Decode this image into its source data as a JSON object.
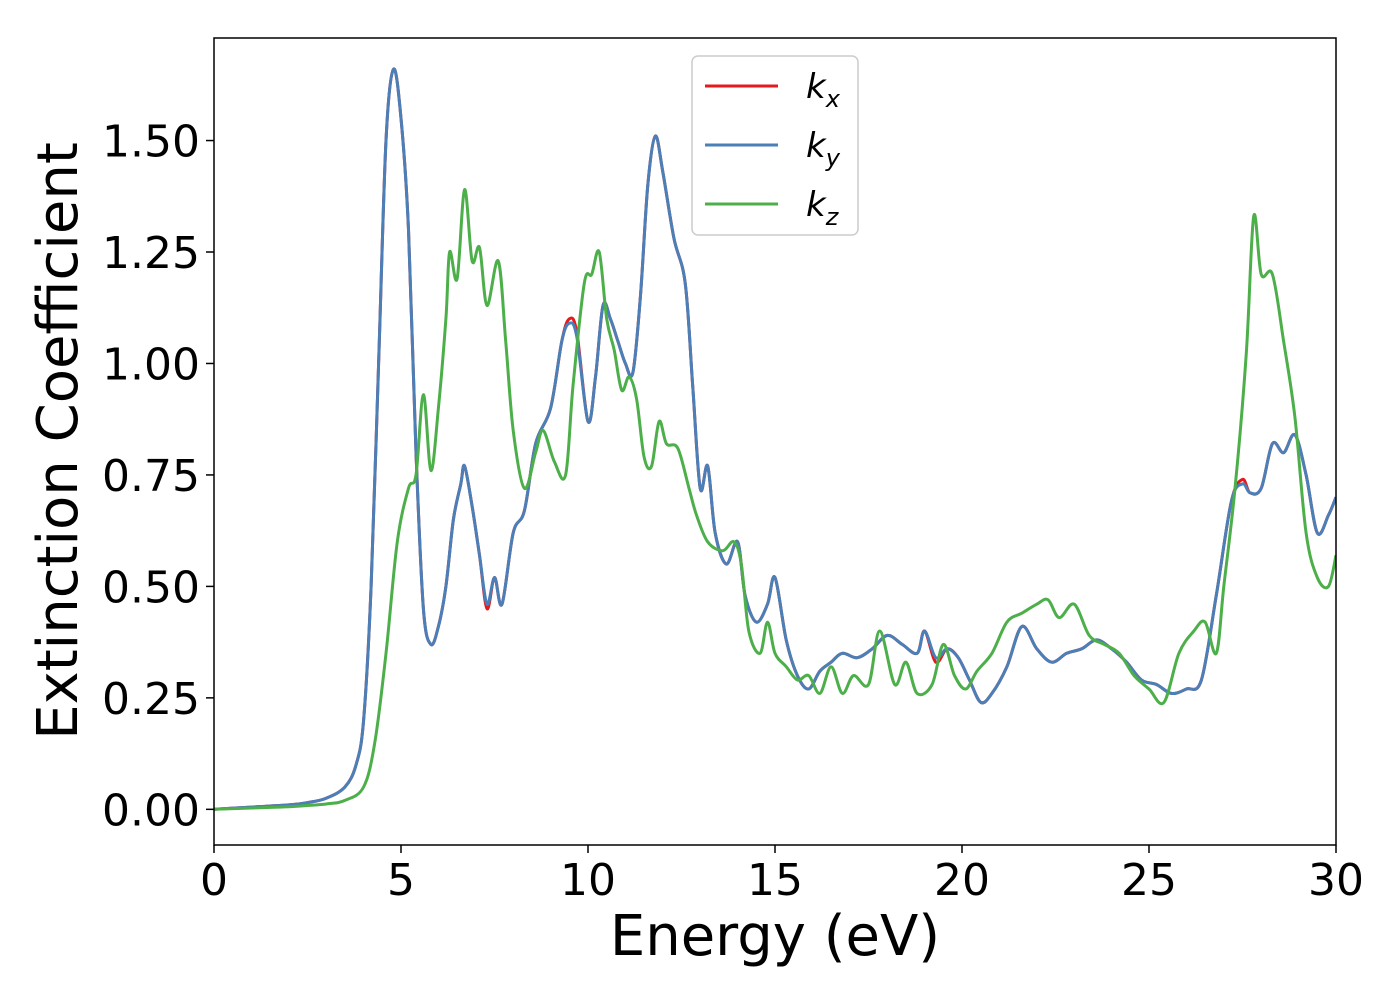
{
  "chart_data": {
    "type": "line",
    "title": "",
    "xlabel": "Energy (eV)",
    "ylabel": "Extinction Coefficient",
    "xlim": [
      0,
      30
    ],
    "ylim": [
      -0.08,
      1.73
    ],
    "xticks": [
      0,
      5,
      10,
      15,
      20,
      25,
      30
    ],
    "xtick_labels": [
      "0",
      "5",
      "10",
      "15",
      "20",
      "25",
      "30"
    ],
    "yticks": [
      0,
      0.25,
      0.5,
      0.75,
      1.0,
      1.25,
      1.5
    ],
    "ytick_labels": [
      "0.00",
      "0.25",
      "0.50",
      "0.75",
      "1.00",
      "1.25",
      "1.50"
    ],
    "grid": false,
    "legend_position": "top-center",
    "series": [
      {
        "name": "k_x",
        "legend_main": "k",
        "legend_sub": "x",
        "color": "#e41a1c",
        "points": [
          [
            0,
            0
          ],
          [
            1,
            0.005
          ],
          [
            2,
            0.01
          ],
          [
            2.5,
            0.015
          ],
          [
            3,
            0.025
          ],
          [
            3.5,
            0.05
          ],
          [
            3.8,
            0.1
          ],
          [
            4.0,
            0.2
          ],
          [
            4.2,
            0.5
          ],
          [
            4.4,
            1.0
          ],
          [
            4.6,
            1.5
          ],
          [
            4.8,
            1.66
          ],
          [
            5.0,
            1.55
          ],
          [
            5.2,
            1.3
          ],
          [
            5.4,
            0.8
          ],
          [
            5.6,
            0.45
          ],
          [
            5.8,
            0.37
          ],
          [
            6.0,
            0.41
          ],
          [
            6.2,
            0.5
          ],
          [
            6.4,
            0.65
          ],
          [
            6.6,
            0.73
          ],
          [
            6.7,
            0.77
          ],
          [
            6.9,
            0.68
          ],
          [
            7.1,
            0.57
          ],
          [
            7.3,
            0.45
          ],
          [
            7.5,
            0.52
          ],
          [
            7.7,
            0.46
          ],
          [
            8.0,
            0.62
          ],
          [
            8.3,
            0.67
          ],
          [
            8.6,
            0.82
          ],
          [
            9.0,
            0.9
          ],
          [
            9.3,
            1.05
          ],
          [
            9.5,
            1.1
          ],
          [
            9.7,
            1.07
          ],
          [
            10.0,
            0.87
          ],
          [
            10.2,
            0.97
          ],
          [
            10.4,
            1.13
          ],
          [
            10.6,
            1.1
          ],
          [
            10.8,
            1.05
          ],
          [
            11.0,
            1.0
          ],
          [
            11.2,
            0.98
          ],
          [
            11.4,
            1.15
          ],
          [
            11.6,
            1.4
          ],
          [
            11.8,
            1.51
          ],
          [
            12.0,
            1.43
          ],
          [
            12.3,
            1.28
          ],
          [
            12.6,
            1.18
          ],
          [
            12.8,
            0.95
          ],
          [
            13.0,
            0.72
          ],
          [
            13.2,
            0.77
          ],
          [
            13.4,
            0.62
          ],
          [
            13.7,
            0.55
          ],
          [
            14.0,
            0.6
          ],
          [
            14.2,
            0.48
          ],
          [
            14.5,
            0.42
          ],
          [
            14.8,
            0.46
          ],
          [
            15.0,
            0.52
          ],
          [
            15.3,
            0.38
          ],
          [
            15.6,
            0.3
          ],
          [
            15.9,
            0.27
          ],
          [
            16.2,
            0.31
          ],
          [
            16.5,
            0.33
          ],
          [
            16.8,
            0.35
          ],
          [
            17.2,
            0.34
          ],
          [
            17.6,
            0.36
          ],
          [
            18.0,
            0.39
          ],
          [
            18.4,
            0.37
          ],
          [
            18.8,
            0.35
          ],
          [
            19.0,
            0.4
          ],
          [
            19.3,
            0.33
          ],
          [
            19.6,
            0.36
          ],
          [
            19.9,
            0.34
          ],
          [
            20.2,
            0.29
          ],
          [
            20.5,
            0.24
          ],
          [
            20.8,
            0.26
          ],
          [
            21.2,
            0.32
          ],
          [
            21.6,
            0.41
          ],
          [
            22.0,
            0.36
          ],
          [
            22.4,
            0.33
          ],
          [
            22.8,
            0.35
          ],
          [
            23.2,
            0.36
          ],
          [
            23.6,
            0.38
          ],
          [
            24.0,
            0.36
          ],
          [
            24.4,
            0.33
          ],
          [
            24.8,
            0.29
          ],
          [
            25.2,
            0.28
          ],
          [
            25.6,
            0.26
          ],
          [
            26.0,
            0.27
          ],
          [
            26.4,
            0.29
          ],
          [
            26.8,
            0.48
          ],
          [
            27.2,
            0.69
          ],
          [
            27.5,
            0.74
          ],
          [
            27.7,
            0.71
          ],
          [
            28.0,
            0.72
          ],
          [
            28.3,
            0.82
          ],
          [
            28.6,
            0.8
          ],
          [
            28.9,
            0.84
          ],
          [
            29.2,
            0.75
          ],
          [
            29.5,
            0.62
          ],
          [
            29.8,
            0.66
          ],
          [
            30.0,
            0.7
          ]
        ]
      },
      {
        "name": "k_y",
        "legend_main": "k",
        "legend_sub": "y",
        "color": "#4a7fb8",
        "points": [
          [
            0,
            0
          ],
          [
            1,
            0.005
          ],
          [
            2,
            0.01
          ],
          [
            2.5,
            0.015
          ],
          [
            3,
            0.025
          ],
          [
            3.5,
            0.05
          ],
          [
            3.8,
            0.1
          ],
          [
            4.0,
            0.2
          ],
          [
            4.2,
            0.5
          ],
          [
            4.4,
            1.0
          ],
          [
            4.6,
            1.5
          ],
          [
            4.8,
            1.66
          ],
          [
            5.0,
            1.55
          ],
          [
            5.2,
            1.3
          ],
          [
            5.4,
            0.8
          ],
          [
            5.6,
            0.45
          ],
          [
            5.8,
            0.37
          ],
          [
            6.0,
            0.41
          ],
          [
            6.2,
            0.5
          ],
          [
            6.4,
            0.65
          ],
          [
            6.6,
            0.73
          ],
          [
            6.7,
            0.77
          ],
          [
            6.9,
            0.68
          ],
          [
            7.1,
            0.57
          ],
          [
            7.3,
            0.46
          ],
          [
            7.5,
            0.52
          ],
          [
            7.7,
            0.46
          ],
          [
            8.0,
            0.62
          ],
          [
            8.3,
            0.67
          ],
          [
            8.6,
            0.82
          ],
          [
            9.0,
            0.9
          ],
          [
            9.3,
            1.05
          ],
          [
            9.5,
            1.09
          ],
          [
            9.7,
            1.06
          ],
          [
            10.0,
            0.87
          ],
          [
            10.2,
            0.97
          ],
          [
            10.4,
            1.13
          ],
          [
            10.6,
            1.1
          ],
          [
            10.8,
            1.05
          ],
          [
            11.0,
            1.0
          ],
          [
            11.2,
            0.98
          ],
          [
            11.4,
            1.15
          ],
          [
            11.6,
            1.4
          ],
          [
            11.8,
            1.51
          ],
          [
            12.0,
            1.43
          ],
          [
            12.3,
            1.28
          ],
          [
            12.6,
            1.18
          ],
          [
            12.8,
            0.95
          ],
          [
            13.0,
            0.72
          ],
          [
            13.2,
            0.77
          ],
          [
            13.4,
            0.62
          ],
          [
            13.7,
            0.55
          ],
          [
            14.0,
            0.6
          ],
          [
            14.2,
            0.48
          ],
          [
            14.5,
            0.42
          ],
          [
            14.8,
            0.46
          ],
          [
            15.0,
            0.52
          ],
          [
            15.3,
            0.38
          ],
          [
            15.6,
            0.3
          ],
          [
            15.9,
            0.27
          ],
          [
            16.2,
            0.31
          ],
          [
            16.5,
            0.33
          ],
          [
            16.8,
            0.35
          ],
          [
            17.2,
            0.34
          ],
          [
            17.6,
            0.36
          ],
          [
            18.0,
            0.39
          ],
          [
            18.4,
            0.37
          ],
          [
            18.8,
            0.35
          ],
          [
            19.0,
            0.4
          ],
          [
            19.3,
            0.34
          ],
          [
            19.6,
            0.36
          ],
          [
            19.9,
            0.34
          ],
          [
            20.2,
            0.29
          ],
          [
            20.5,
            0.24
          ],
          [
            20.8,
            0.26
          ],
          [
            21.2,
            0.32
          ],
          [
            21.6,
            0.41
          ],
          [
            22.0,
            0.36
          ],
          [
            22.4,
            0.33
          ],
          [
            22.8,
            0.35
          ],
          [
            23.2,
            0.36
          ],
          [
            23.6,
            0.38
          ],
          [
            24.0,
            0.36
          ],
          [
            24.4,
            0.33
          ],
          [
            24.8,
            0.29
          ],
          [
            25.2,
            0.28
          ],
          [
            25.6,
            0.26
          ],
          [
            26.0,
            0.27
          ],
          [
            26.4,
            0.29
          ],
          [
            26.8,
            0.48
          ],
          [
            27.2,
            0.69
          ],
          [
            27.5,
            0.73
          ],
          [
            27.7,
            0.71
          ],
          [
            28.0,
            0.72
          ],
          [
            28.3,
            0.82
          ],
          [
            28.6,
            0.8
          ],
          [
            28.9,
            0.84
          ],
          [
            29.2,
            0.75
          ],
          [
            29.5,
            0.62
          ],
          [
            29.8,
            0.66
          ],
          [
            30.0,
            0.7
          ]
        ]
      },
      {
        "name": "k_z",
        "legend_main": "k",
        "legend_sub": "z",
        "color": "#4daf4a",
        "points": [
          [
            0,
            0
          ],
          [
            1,
            0.003
          ],
          [
            2,
            0.006
          ],
          [
            3,
            0.012
          ],
          [
            3.5,
            0.02
          ],
          [
            4.0,
            0.05
          ],
          [
            4.3,
            0.15
          ],
          [
            4.6,
            0.35
          ],
          [
            4.9,
            0.6
          ],
          [
            5.2,
            0.72
          ],
          [
            5.4,
            0.75
          ],
          [
            5.6,
            0.93
          ],
          [
            5.8,
            0.76
          ],
          [
            6.0,
            0.9
          ],
          [
            6.2,
            1.1
          ],
          [
            6.3,
            1.25
          ],
          [
            6.5,
            1.19
          ],
          [
            6.7,
            1.39
          ],
          [
            6.9,
            1.23
          ],
          [
            7.1,
            1.26
          ],
          [
            7.3,
            1.13
          ],
          [
            7.6,
            1.23
          ],
          [
            7.8,
            1.05
          ],
          [
            8.0,
            0.85
          ],
          [
            8.3,
            0.72
          ],
          [
            8.6,
            0.8
          ],
          [
            8.8,
            0.85
          ],
          [
            9.1,
            0.78
          ],
          [
            9.4,
            0.75
          ],
          [
            9.6,
            0.95
          ],
          [
            9.9,
            1.18
          ],
          [
            10.1,
            1.2
          ],
          [
            10.3,
            1.25
          ],
          [
            10.5,
            1.1
          ],
          [
            10.7,
            1.03
          ],
          [
            10.9,
            0.94
          ],
          [
            11.1,
            0.97
          ],
          [
            11.3,
            0.92
          ],
          [
            11.5,
            0.79
          ],
          [
            11.7,
            0.77
          ],
          [
            11.9,
            0.87
          ],
          [
            12.1,
            0.82
          ],
          [
            12.4,
            0.81
          ],
          [
            12.7,
            0.72
          ],
          [
            12.9,
            0.66
          ],
          [
            13.2,
            0.6
          ],
          [
            13.6,
            0.58
          ],
          [
            13.9,
            0.6
          ],
          [
            14.1,
            0.55
          ],
          [
            14.3,
            0.4
          ],
          [
            14.6,
            0.35
          ],
          [
            14.8,
            0.42
          ],
          [
            15.0,
            0.35
          ],
          [
            15.3,
            0.32
          ],
          [
            15.6,
            0.29
          ],
          [
            15.9,
            0.3
          ],
          [
            16.2,
            0.26
          ],
          [
            16.5,
            0.32
          ],
          [
            16.8,
            0.26
          ],
          [
            17.1,
            0.3
          ],
          [
            17.5,
            0.28
          ],
          [
            17.8,
            0.4
          ],
          [
            18.2,
            0.28
          ],
          [
            18.5,
            0.33
          ],
          [
            18.8,
            0.26
          ],
          [
            19.2,
            0.28
          ],
          [
            19.5,
            0.37
          ],
          [
            19.8,
            0.3
          ],
          [
            20.1,
            0.27
          ],
          [
            20.4,
            0.31
          ],
          [
            20.8,
            0.35
          ],
          [
            21.2,
            0.42
          ],
          [
            21.6,
            0.44
          ],
          [
            22.0,
            0.46
          ],
          [
            22.3,
            0.47
          ],
          [
            22.6,
            0.43
          ],
          [
            23.0,
            0.46
          ],
          [
            23.4,
            0.39
          ],
          [
            23.8,
            0.37
          ],
          [
            24.2,
            0.35
          ],
          [
            24.6,
            0.3
          ],
          [
            25.0,
            0.27
          ],
          [
            25.4,
            0.24
          ],
          [
            25.8,
            0.35
          ],
          [
            26.2,
            0.4
          ],
          [
            26.5,
            0.42
          ],
          [
            26.8,
            0.35
          ],
          [
            27.0,
            0.5
          ],
          [
            27.3,
            0.72
          ],
          [
            27.6,
            1.02
          ],
          [
            27.8,
            1.33
          ],
          [
            28.0,
            1.2
          ],
          [
            28.3,
            1.2
          ],
          [
            28.6,
            1.05
          ],
          [
            28.9,
            0.88
          ],
          [
            29.2,
            0.62
          ],
          [
            29.5,
            0.52
          ],
          [
            29.8,
            0.5
          ],
          [
            30.0,
            0.57
          ]
        ]
      }
    ]
  }
}
